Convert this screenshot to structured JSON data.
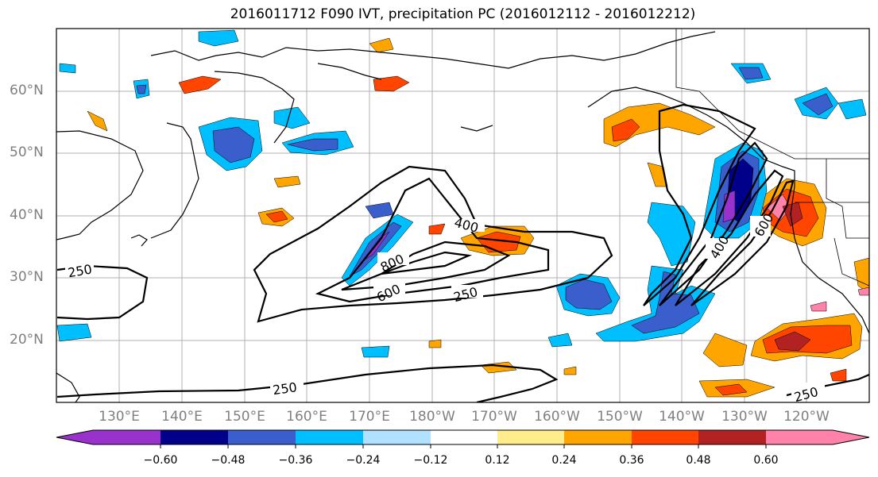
{
  "title": "2016011712 F090 IVT, precipitation PC (2016012112 - 2016012212)",
  "map": {
    "lat_labels": [
      "60°N",
      "50°N",
      "40°N",
      "30°N",
      "20°N"
    ],
    "lon_labels": [
      "130°E",
      "140°E",
      "150°E",
      "160°E",
      "170°E",
      "180°W",
      "170°W",
      "160°W",
      "150°W",
      "140°W",
      "130°W",
      "120°W"
    ],
    "ivt_contour_labels": [
      "250",
      "400",
      "600",
      "800",
      "250",
      "250",
      "250",
      "400",
      "600"
    ],
    "gridlines": true
  },
  "colorbar": {
    "ticks": [
      "−0.60",
      "−0.48",
      "−0.36",
      "−0.24",
      "−0.12",
      "0.12",
      "0.24",
      "0.36",
      "0.48",
      "0.60"
    ],
    "colors": [
      "#9932cc",
      "#00008b",
      "#3a5fcd",
      "#00bfff",
      "#b0e2ff",
      "#ffffff",
      "#ffec8b",
      "#ffa500",
      "#ff4500",
      "#b22222",
      "#ff82ab"
    ],
    "extend": "both"
  }
}
